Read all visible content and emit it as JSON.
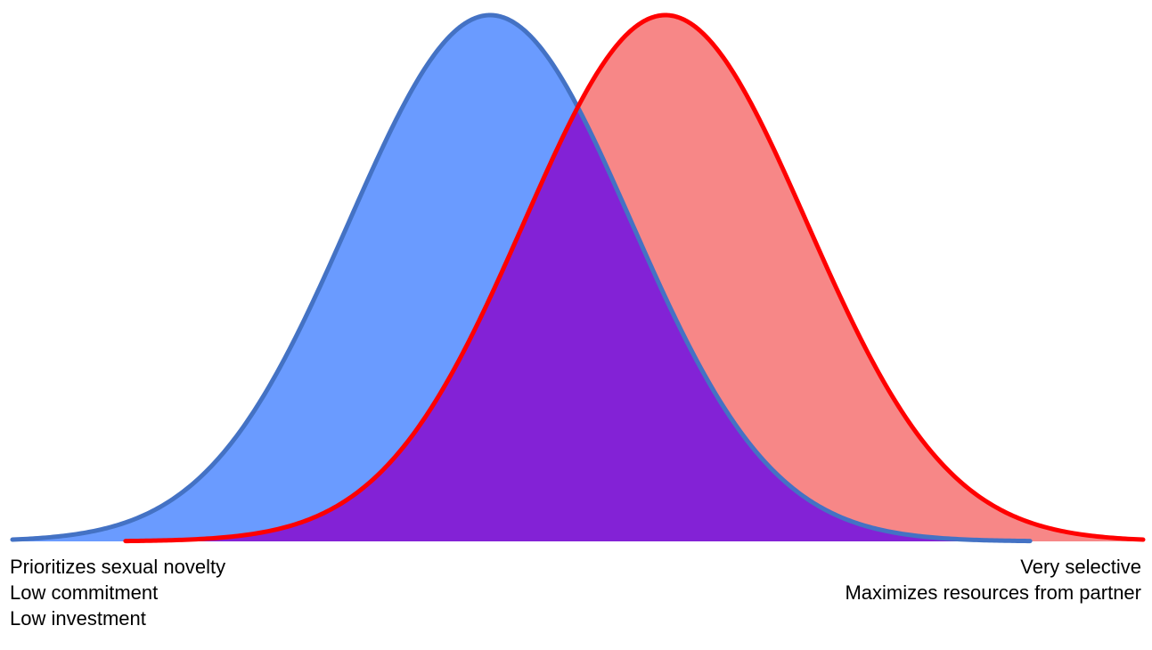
{
  "chart_data": {
    "type": "area",
    "title": "",
    "xlabel": "",
    "ylabel": "",
    "grid": false,
    "legend": "none",
    "xlim": [
      -4,
      4
    ],
    "ylim": [
      0,
      1
    ],
    "series": [
      {
        "name": "",
        "mean": -0.62,
        "sd": 1.0,
        "line_color": "#4472c4",
        "fill_color": "#6a9bff",
        "x_range": [
          -4.0,
          3.2
        ]
      },
      {
        "name": "",
        "mean": 0.62,
        "sd": 1.0,
        "line_color": "#ff0000",
        "fill_color": "#f78787",
        "x_range": [
          -3.2,
          4.0
        ]
      }
    ],
    "overlap_color": "#8322d6"
  },
  "labels": {
    "left": [
      "Prioritizes sexual novelty",
      "Low commitment",
      "Low investment"
    ],
    "right": [
      "Very selective",
      "Maximizes resources from partner"
    ]
  }
}
